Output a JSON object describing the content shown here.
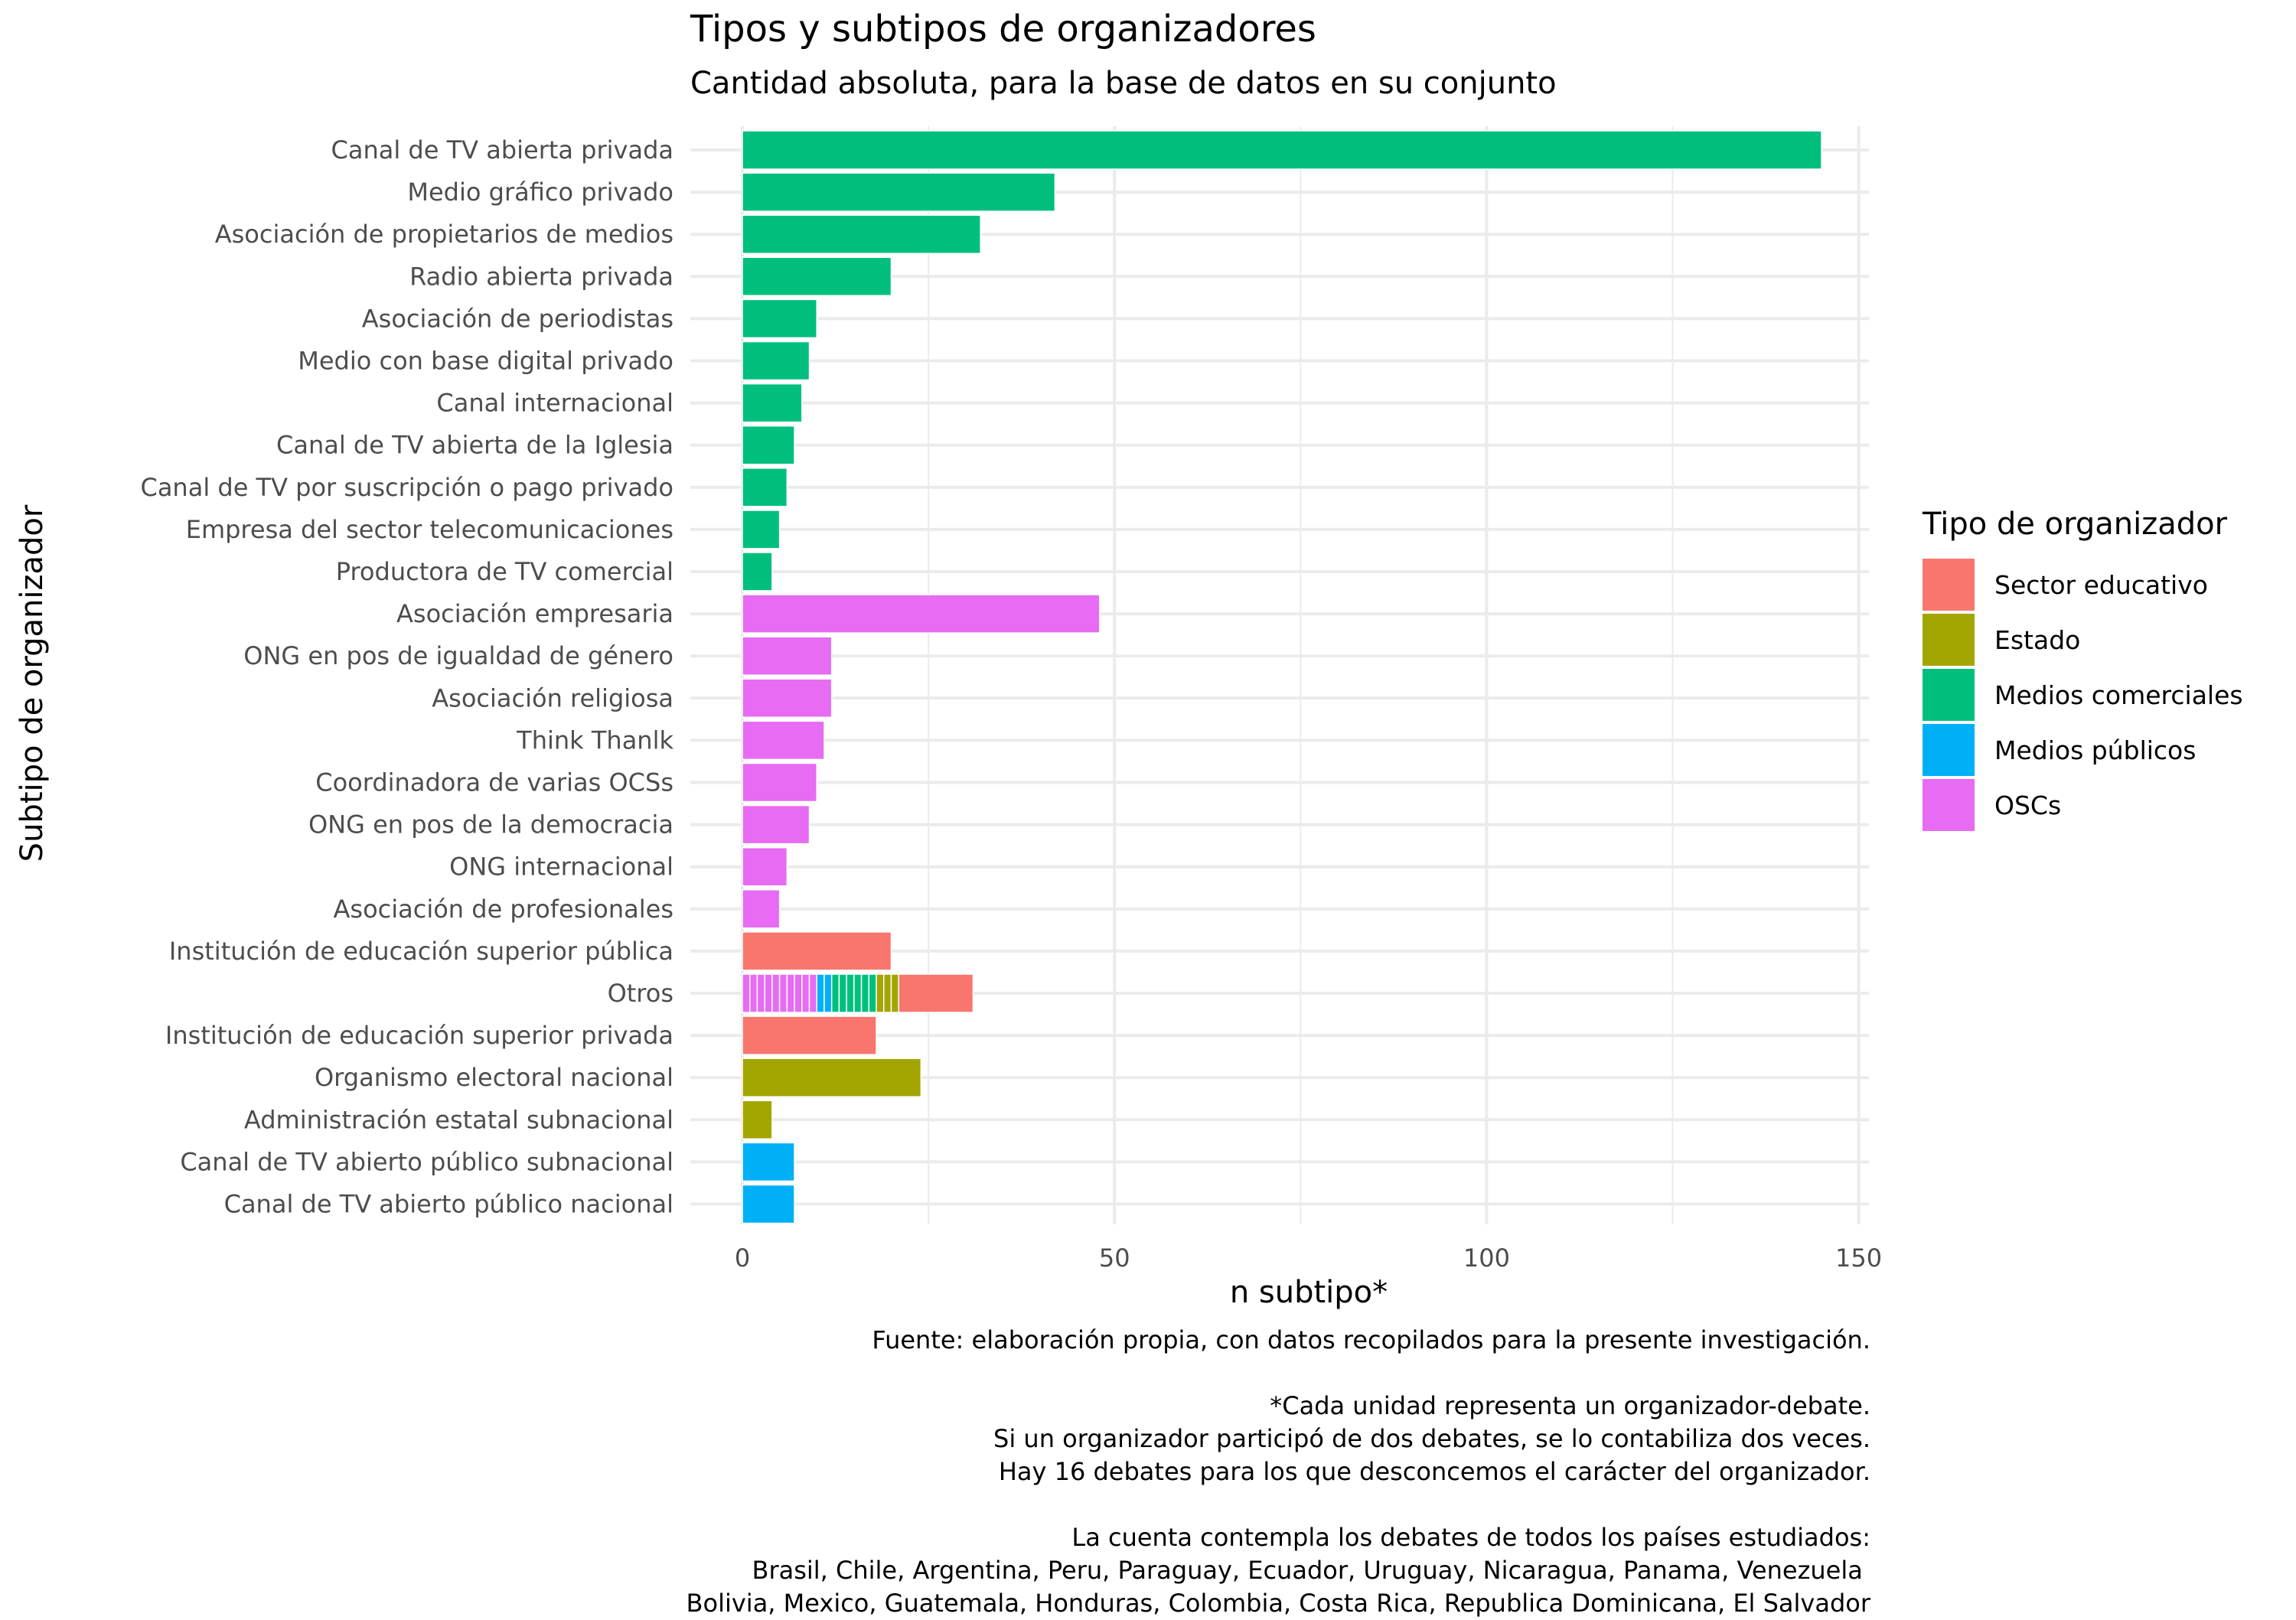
{
  "chart_data": {
    "type": "bar",
    "orientation": "horizontal",
    "stacked": true,
    "title": "Tipos y subtipos de organizadores",
    "subtitle": "Cantidad absoluta, para la base de datos en su conjunto",
    "xlabel": "n subtipo*",
    "ylabel": "Subtipo de organizador",
    "xlim": [
      0,
      152
    ],
    "xticks": [
      0,
      50,
      100,
      150
    ],
    "grid": true,
    "legend_title": "Tipo de organizador",
    "legend_position": "right",
    "legend": [
      {
        "name": "Sector educativo",
        "color": "#F8766D"
      },
      {
        "name": "Estado",
        "color": "#A3A500"
      },
      {
        "name": "Medios comerciales",
        "color": "#00BF7D"
      },
      {
        "name": "Medios públicos",
        "color": "#00B0F6"
      },
      {
        "name": "OSCs",
        "color": "#E76BF3"
      }
    ],
    "categories": [
      "Canal de TV abierta privada",
      "Medio gráfico privado",
      "Asociación de propietarios de medios",
      "Radio abierta privada",
      "Asociación de periodistas",
      "Medio con base digital privado",
      "Canal internacional",
      "Canal de TV abierta de la Iglesia",
      "Canal de TV por suscripción o pago privado",
      "Empresa del sector telecomunicaciones",
      "Productora de TV comercial",
      "Asociación empresaria",
      "ONG en pos de igualdad de género",
      "Asociación religiosa",
      "Think Thanlk",
      "Coordinadora de varias OCSs",
      "ONG en pos de la democracia",
      "ONG internacional",
      "Asociación de profesionales",
      "Institución de educación superior pública",
      "Otros",
      "Institución de educación superior privada",
      "Organismo electoral nacional",
      "Administración estatal subnacional",
      "Canal de TV abierto público subnacional",
      "Canal de TV abierto público nacional"
    ],
    "bars": [
      {
        "category": "Canal de TV abierta privada",
        "segments": [
          {
            "type": "Medios comerciales",
            "value": 145
          }
        ]
      },
      {
        "category": "Medio gráfico privado",
        "segments": [
          {
            "type": "Medios comerciales",
            "value": 42
          }
        ]
      },
      {
        "category": "Asociación de propietarios de medios",
        "segments": [
          {
            "type": "Medios comerciales",
            "value": 32
          }
        ]
      },
      {
        "category": "Radio abierta privada",
        "segments": [
          {
            "type": "Medios comerciales",
            "value": 20
          }
        ]
      },
      {
        "category": "Asociación de periodistas",
        "segments": [
          {
            "type": "Medios comerciales",
            "value": 10
          }
        ]
      },
      {
        "category": "Medio con base digital privado",
        "segments": [
          {
            "type": "Medios comerciales",
            "value": 9
          }
        ]
      },
      {
        "category": "Canal internacional",
        "segments": [
          {
            "type": "Medios comerciales",
            "value": 8
          }
        ]
      },
      {
        "category": "Canal de TV abierta de la Iglesia",
        "segments": [
          {
            "type": "Medios comerciales",
            "value": 7
          }
        ]
      },
      {
        "category": "Canal de TV por suscripción o pago privado",
        "segments": [
          {
            "type": "Medios comerciales",
            "value": 6
          }
        ]
      },
      {
        "category": "Empresa del sector telecomunicaciones",
        "segments": [
          {
            "type": "Medios comerciales",
            "value": 5
          }
        ]
      },
      {
        "category": "Productora de TV comercial",
        "segments": [
          {
            "type": "Medios comerciales",
            "value": 4
          }
        ]
      },
      {
        "category": "Asociación empresaria",
        "segments": [
          {
            "type": "OSCs",
            "value": 48
          }
        ]
      },
      {
        "category": "ONG en pos de igualdad de género",
        "segments": [
          {
            "type": "OSCs",
            "value": 12
          }
        ]
      },
      {
        "category": "Asociación religiosa",
        "segments": [
          {
            "type": "OSCs",
            "value": 12
          }
        ]
      },
      {
        "category": "Think Thanlk",
        "segments": [
          {
            "type": "OSCs",
            "value": 11
          }
        ]
      },
      {
        "category": "Coordinadora de varias OCSs",
        "segments": [
          {
            "type": "OSCs",
            "value": 10
          }
        ]
      },
      {
        "category": "ONG en pos de la democracia",
        "segments": [
          {
            "type": "OSCs",
            "value": 9
          }
        ]
      },
      {
        "category": "ONG internacional",
        "segments": [
          {
            "type": "OSCs",
            "value": 6
          }
        ]
      },
      {
        "category": "Asociación de profesionales",
        "segments": [
          {
            "type": "OSCs",
            "value": 5
          }
        ]
      },
      {
        "category": "Institución de educación superior pública",
        "segments": [
          {
            "type": "Sector educativo",
            "value": 20
          }
        ]
      },
      {
        "category": "Otros",
        "segments": [
          {
            "type": "OSCs",
            "value": 1
          },
          {
            "type": "OSCs",
            "value": 1
          },
          {
            "type": "OSCs",
            "value": 1
          },
          {
            "type": "OSCs",
            "value": 1
          },
          {
            "type": "OSCs",
            "value": 1
          },
          {
            "type": "OSCs",
            "value": 1
          },
          {
            "type": "OSCs",
            "value": 1
          },
          {
            "type": "OSCs",
            "value": 1
          },
          {
            "type": "OSCs",
            "value": 1
          },
          {
            "type": "OSCs",
            "value": 1
          },
          {
            "type": "Medios públicos",
            "value": 1
          },
          {
            "type": "Medios públicos",
            "value": 1
          },
          {
            "type": "Medios comerciales",
            "value": 1
          },
          {
            "type": "Medios comerciales",
            "value": 1
          },
          {
            "type": "Medios comerciales",
            "value": 1
          },
          {
            "type": "Medios comerciales",
            "value": 1
          },
          {
            "type": "Medios comerciales",
            "value": 1
          },
          {
            "type": "Medios comerciales",
            "value": 1
          },
          {
            "type": "Estado",
            "value": 1
          },
          {
            "type": "Estado",
            "value": 1
          },
          {
            "type": "Estado",
            "value": 1
          },
          {
            "type": "Sector educativo",
            "value": 10
          }
        ]
      },
      {
        "category": "Institución de educación superior privada",
        "segments": [
          {
            "type": "Sector educativo",
            "value": 18
          }
        ]
      },
      {
        "category": "Organismo electoral nacional",
        "segments": [
          {
            "type": "Estado",
            "value": 24
          }
        ]
      },
      {
        "category": "Administración estatal subnacional",
        "segments": [
          {
            "type": "Estado",
            "value": 4
          }
        ]
      },
      {
        "category": "Canal de TV abierto público subnacional",
        "segments": [
          {
            "type": "Medios públicos",
            "value": 7
          }
        ]
      },
      {
        "category": "Canal de TV abierto público nacional",
        "segments": [
          {
            "type": "Medios públicos",
            "value": 7
          }
        ]
      }
    ],
    "caption": "Fuente: elaboración propia, con datos recopilados para la presente investigación.\n\n*Cada unidad representa un organizador-debate.\nSi un organizador participó de dos debates, se lo contabiliza dos veces.\nHay 16 debates para los que desconcemos el carácter del organizador.\n\nLa cuenta contempla los debates de todos los países estudiados:\nBrasil, Chile, Argentina, Peru, Paraguay, Ecuador, Uruguay, Nicaragua, Panama, Venezuela \nBolivia, Mexico, Guatemala, Honduras, Colombia, Costa Rica, Republica Dominicana, El Salvador"
  }
}
